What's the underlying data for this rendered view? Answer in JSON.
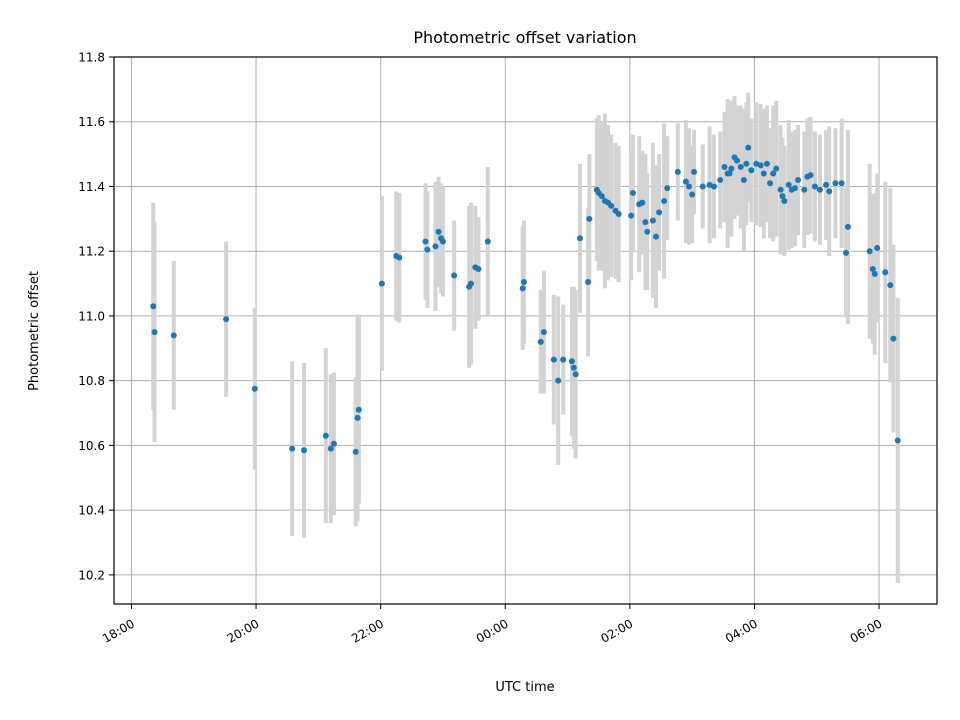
{
  "chart_data": {
    "type": "scatter",
    "title": "Photometric offset variation",
    "xlabel": "UTC time",
    "ylabel": "Photometric offset",
    "x_unit": "hours (UTC clock, day 1 from 18:00, after midnight shown as 24+)",
    "xlim": [
      17.72,
      30.93
    ],
    "ylim": [
      10.11,
      11.8
    ],
    "grid": true,
    "x_ticks": [
      {
        "value": 18,
        "label": "18:00"
      },
      {
        "value": 20,
        "label": "20:00"
      },
      {
        "value": 22,
        "label": "22:00"
      },
      {
        "value": 24,
        "label": "00:00"
      },
      {
        "value": 26,
        "label": "02:00"
      },
      {
        "value": 28,
        "label": "04:00"
      },
      {
        "value": 30,
        "label": "06:00"
      }
    ],
    "y_ticks": [
      "10.2",
      "10.4",
      "10.6",
      "10.8",
      "11.0",
      "11.2",
      "11.4",
      "11.6",
      "11.8"
    ],
    "colors": {
      "point": "#1f77b4",
      "errorbar": "#d3d3d3",
      "grid": "#b0b0b0"
    },
    "points": [
      [
        18.35,
        11.03,
        0.32
      ],
      [
        18.37,
        10.95,
        0.34
      ],
      [
        18.68,
        10.94,
        0.23
      ],
      [
        19.52,
        10.99,
        0.24
      ],
      [
        19.98,
        10.775,
        0.25
      ],
      [
        20.58,
        10.59,
        0.27
      ],
      [
        20.77,
        10.585,
        0.27
      ],
      [
        21.12,
        10.63,
        0.27
      ],
      [
        21.2,
        10.59,
        0.23
      ],
      [
        21.25,
        10.605,
        0.22
      ],
      [
        21.6,
        10.58,
        0.23
      ],
      [
        21.63,
        10.685,
        0.32
      ],
      [
        21.65,
        10.71,
        0.29
      ],
      [
        22.02,
        11.1,
        0.27
      ],
      [
        22.25,
        11.185,
        0.2
      ],
      [
        22.3,
        11.18,
        0.2
      ],
      [
        22.72,
        11.23,
        0.18
      ],
      [
        22.75,
        11.205,
        0.18
      ],
      [
        22.88,
        11.215,
        0.2
      ],
      [
        22.93,
        11.26,
        0.17
      ],
      [
        22.97,
        11.24,
        0.17
      ],
      [
        23.0,
        11.23,
        0.17
      ],
      [
        23.18,
        11.125,
        0.17
      ],
      [
        23.42,
        11.09,
        0.25
      ],
      [
        23.45,
        11.1,
        0.25
      ],
      [
        23.52,
        11.15,
        0.19
      ],
      [
        23.57,
        11.145,
        0.16
      ],
      [
        23.72,
        11.23,
        0.23
      ],
      [
        24.28,
        11.085,
        0.19
      ],
      [
        24.3,
        11.105,
        0.19
      ],
      [
        24.57,
        10.92,
        0.16
      ],
      [
        24.62,
        10.95,
        0.19
      ],
      [
        24.78,
        10.865,
        0.2
      ],
      [
        24.85,
        10.8,
        0.26
      ],
      [
        24.93,
        10.865,
        0.17
      ],
      [
        25.07,
        10.86,
        0.23
      ],
      [
        25.1,
        10.84,
        0.25
      ],
      [
        25.13,
        10.82,
        0.26
      ],
      [
        25.2,
        11.24,
        0.23
      ],
      [
        25.33,
        11.105,
        0.23
      ],
      [
        25.35,
        11.3,
        0.2
      ],
      [
        25.47,
        11.39,
        0.22
      ],
      [
        25.5,
        11.38,
        0.24
      ],
      [
        25.55,
        11.37,
        0.23
      ],
      [
        25.6,
        11.355,
        0.27
      ],
      [
        25.65,
        11.35,
        0.24
      ],
      [
        25.7,
        11.34,
        0.22
      ],
      [
        25.77,
        11.325,
        0.21
      ],
      [
        25.82,
        11.315,
        0.21
      ],
      [
        26.02,
        11.31,
        0.2
      ],
      [
        26.05,
        11.38,
        0.18
      ],
      [
        26.15,
        11.345,
        0.21
      ],
      [
        26.2,
        11.35,
        0.16
      ],
      [
        26.25,
        11.29,
        0.21
      ],
      [
        26.28,
        11.26,
        0.18
      ],
      [
        26.37,
        11.295,
        0.24
      ],
      [
        26.42,
        11.245,
        0.22
      ],
      [
        26.47,
        11.32,
        0.18
      ],
      [
        26.55,
        11.355,
        0.24
      ],
      [
        26.6,
        11.395,
        0.16
      ],
      [
        26.77,
        11.445,
        0.15
      ],
      [
        26.9,
        11.415,
        0.19
      ],
      [
        26.95,
        11.4,
        0.18
      ],
      [
        27.0,
        11.375,
        0.15
      ],
      [
        27.03,
        11.445,
        0.13
      ],
      [
        27.17,
        11.4,
        0.13
      ],
      [
        27.28,
        11.405,
        0.18
      ],
      [
        27.35,
        11.4,
        0.16
      ],
      [
        27.45,
        11.42,
        0.15
      ],
      [
        27.52,
        11.46,
        0.17
      ],
      [
        27.57,
        11.44,
        0.23
      ],
      [
        27.6,
        11.44,
        0.18
      ],
      [
        27.63,
        11.455,
        0.21
      ],
      [
        27.68,
        11.49,
        0.19
      ],
      [
        27.72,
        11.48,
        0.17
      ],
      [
        27.78,
        11.46,
        0.19
      ],
      [
        27.83,
        11.42,
        0.22
      ],
      [
        27.87,
        11.47,
        0.19
      ],
      [
        27.9,
        11.52,
        0.17
      ],
      [
        27.95,
        11.45,
        0.16
      ],
      [
        28.03,
        11.47,
        0.19
      ],
      [
        28.1,
        11.465,
        0.19
      ],
      [
        28.15,
        11.44,
        0.2
      ],
      [
        28.2,
        11.47,
        0.18
      ],
      [
        28.25,
        11.41,
        0.17
      ],
      [
        28.3,
        11.44,
        0.21
      ],
      [
        28.35,
        11.455,
        0.21
      ],
      [
        28.42,
        11.39,
        0.2
      ],
      [
        28.45,
        11.37,
        0.18
      ],
      [
        28.48,
        11.355,
        0.17
      ],
      [
        28.55,
        11.405,
        0.2
      ],
      [
        28.6,
        11.39,
        0.18
      ],
      [
        28.65,
        11.395,
        0.18
      ],
      [
        28.7,
        11.42,
        0.17
      ],
      [
        28.8,
        11.39,
        0.18
      ],
      [
        28.85,
        11.43,
        0.18
      ],
      [
        28.9,
        11.435,
        0.18
      ],
      [
        28.97,
        11.4,
        0.17
      ],
      [
        29.05,
        11.39,
        0.17
      ],
      [
        29.15,
        11.405,
        0.17
      ],
      [
        29.2,
        11.385,
        0.2
      ],
      [
        29.3,
        11.41,
        0.17
      ],
      [
        29.4,
        11.41,
        0.2
      ],
      [
        29.47,
        11.195,
        0.2
      ],
      [
        29.5,
        11.275,
        0.3
      ],
      [
        29.85,
        11.2,
        0.27
      ],
      [
        29.9,
        11.145,
        0.23
      ],
      [
        29.93,
        11.13,
        0.25
      ],
      [
        29.97,
        11.21,
        0.23
      ],
      [
        30.1,
        11.135,
        0.28
      ],
      [
        30.18,
        11.095,
        0.3
      ],
      [
        30.23,
        10.93,
        0.29
      ],
      [
        30.3,
        10.615,
        0.44
      ]
    ]
  }
}
